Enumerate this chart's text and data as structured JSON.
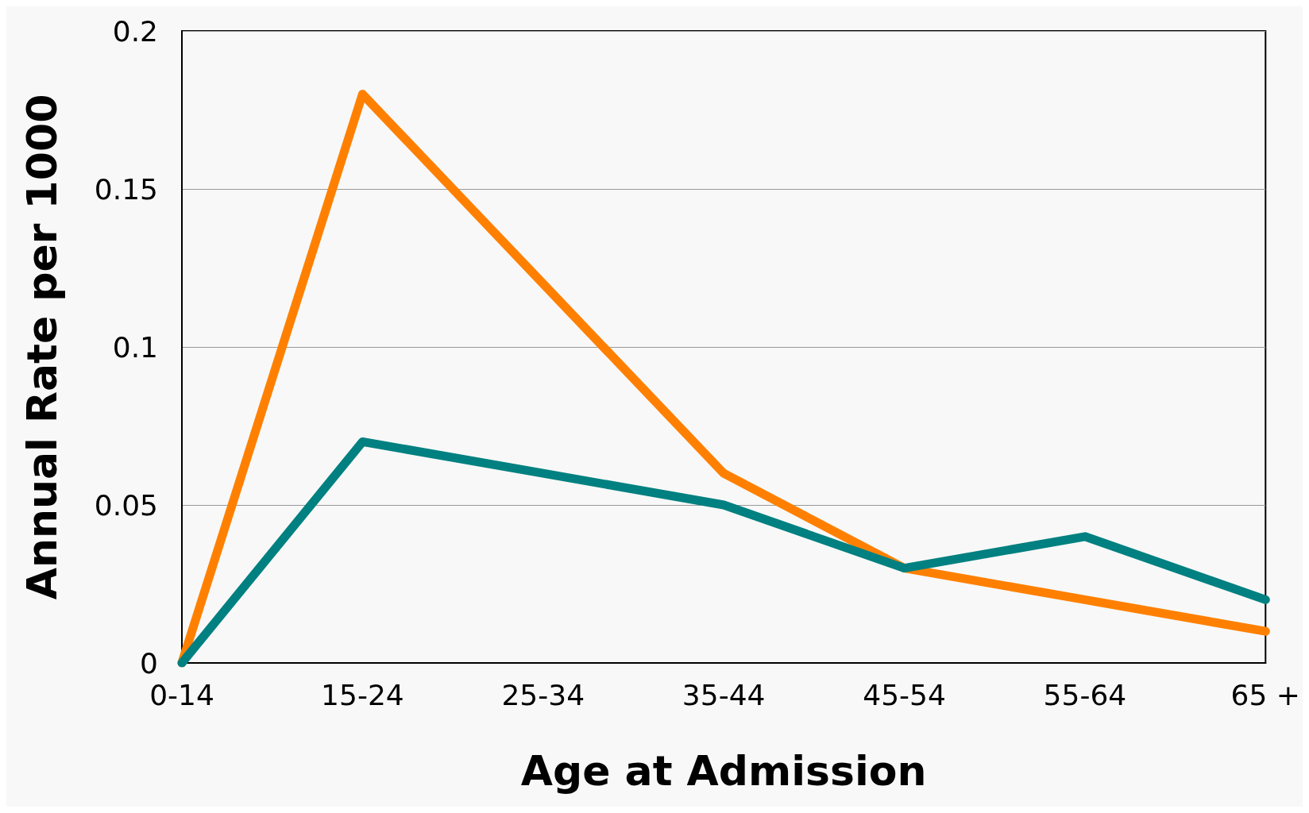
{
  "chart_data": {
    "type": "line",
    "xlabel": "Age at Admission",
    "ylabel": "Annual Rate per 1000",
    "categories": [
      "0-14",
      "15-24",
      "25-34",
      "35-44",
      "45-54",
      "55-64",
      "65 +"
    ],
    "series": [
      {
        "color": "#ff8000",
        "values": [
          0,
          0.18,
          0.12,
          0.06,
          0.03,
          0.02,
          0.01
        ]
      },
      {
        "color": "#008080",
        "values": [
          0,
          0.07,
          0.06,
          0.05,
          0.03,
          0.04,
          0.02
        ]
      }
    ],
    "ylim": [
      0,
      0.2
    ],
    "yticks": [
      0,
      0.05,
      0.1,
      0.15,
      0.2
    ],
    "grid": "y",
    "marker": "none",
    "line_style": "solid"
  }
}
